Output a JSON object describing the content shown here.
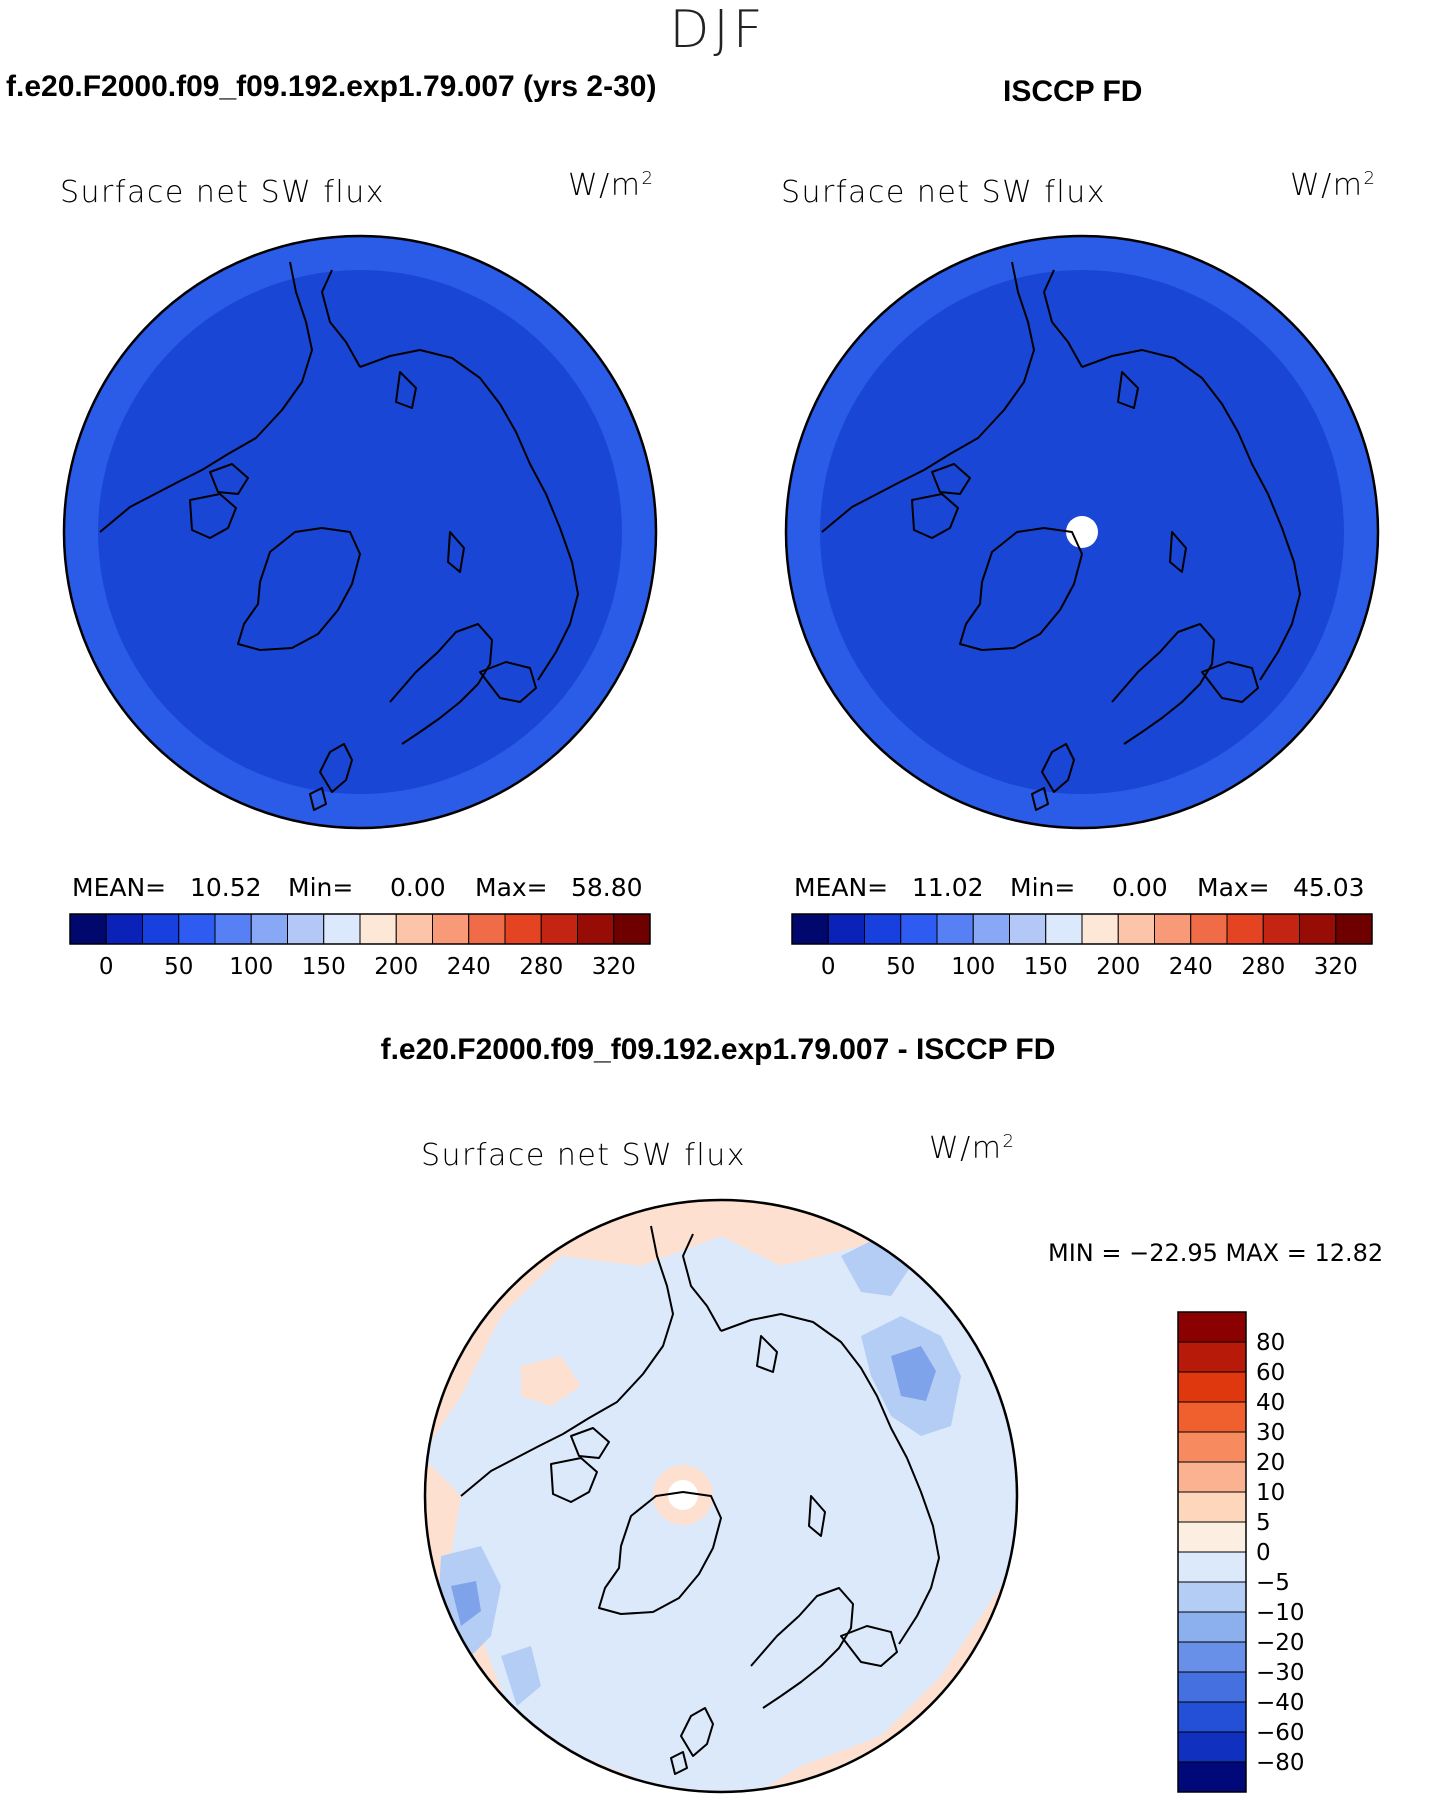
{
  "figure": {
    "season": "DJF",
    "colors": {
      "map_fill": "#1a46d6",
      "map_edge_fill": "#2a5ce8",
      "diff_base": "#dce9fb",
      "diff_pos": "#fde0cf",
      "diff_neg": "#b3cdf4",
      "diff_neg2": "#7fa3ea",
      "coast": "#000000"
    }
  },
  "panels": {
    "model": {
      "title": "f.e20.F2000.f09_f09.192.exp1.79.007 (yrs 2-30)",
      "var_label": "Surface net SW flux",
      "unit": "W/m",
      "unit_exp": "2",
      "stats": {
        "mean_label": "MEAN=",
        "mean": "10.52",
        "min_label": "Min=",
        "min": "0.00",
        "max_label": "Max=",
        "max": "58.80"
      }
    },
    "obs": {
      "title": "ISCCP FD",
      "var_label": "Surface net SW flux",
      "unit": "W/m",
      "unit_exp": "2",
      "stats": {
        "mean_label": "MEAN=",
        "mean": "11.02",
        "min_label": "Min=",
        "min": "0.00",
        "max_label": "Max=",
        "max": "45.03"
      }
    },
    "diff": {
      "title": "f.e20.F2000.f09_f09.192.exp1.79.007 - ISCCP FD",
      "var_label": "Surface net SW flux",
      "unit": "W/m",
      "unit_exp": "2",
      "minmax": "MIN = −22.95 MAX =   12.82"
    }
  },
  "chart_data": [
    {
      "type": "heatmap",
      "projection": "polar-stereographic-north",
      "title": "f.e20.F2000.f09_f09.192.exp1.79.007 (yrs 2-30)",
      "variable": "Surface net SW flux",
      "units": "W/m2",
      "mean": 10.52,
      "min": 0.0,
      "max": 58.8,
      "colorbar": {
        "orientation": "horizontal",
        "tick_labels": [
          "0",
          "50",
          "100",
          "150",
          "200",
          "240",
          "280",
          "320"
        ],
        "colors": [
          "#00086e",
          "#0a22b8",
          "#1840de",
          "#2e5cf2",
          "#5680f4",
          "#88a8f6",
          "#b4c8f8",
          "#dce8fb",
          "#fde8d8",
          "#fcc4a8",
          "#f89a78",
          "#f06c48",
          "#e44422",
          "#c42412",
          "#980c06",
          "#6e0000"
        ]
      }
    },
    {
      "type": "heatmap",
      "projection": "polar-stereographic-north",
      "title": "ISCCP FD",
      "variable": "Surface net SW flux",
      "units": "W/m2",
      "mean": 11.02,
      "min": 0.0,
      "max": 45.03,
      "colorbar": {
        "orientation": "horizontal",
        "tick_labels": [
          "0",
          "50",
          "100",
          "150",
          "200",
          "240",
          "280",
          "320"
        ],
        "colors": [
          "#00086e",
          "#0a22b8",
          "#1840de",
          "#2e5cf2",
          "#5680f4",
          "#88a8f6",
          "#b4c8f8",
          "#dce8fb",
          "#fde8d8",
          "#fcc4a8",
          "#f89a78",
          "#f06c48",
          "#e44422",
          "#c42412",
          "#980c06",
          "#6e0000"
        ]
      }
    },
    {
      "type": "heatmap",
      "projection": "polar-stereographic-north",
      "title": "f.e20.F2000.f09_f09.192.exp1.79.007 - ISCCP FD",
      "variable": "Surface net SW flux",
      "units": "W/m2",
      "min": -22.95,
      "max": 12.82,
      "colorbar": {
        "orientation": "vertical",
        "tick_labels": [
          "80",
          "60",
          "40",
          "30",
          "20",
          "10",
          "5",
          "0",
          "−5",
          "−10",
          "−20",
          "−30",
          "−40",
          "−60",
          "−80"
        ],
        "colors": [
          "#8b0000",
          "#b81a0a",
          "#e0380e",
          "#f0602e",
          "#f88a60",
          "#fbb291",
          "#fdd6bc",
          "#fdeee2",
          "#dce9fb",
          "#b3cdf4",
          "#8cb0ee",
          "#6890e8",
          "#4470e0",
          "#2450d8",
          "#1030c0",
          "#00087a"
        ]
      }
    }
  ]
}
